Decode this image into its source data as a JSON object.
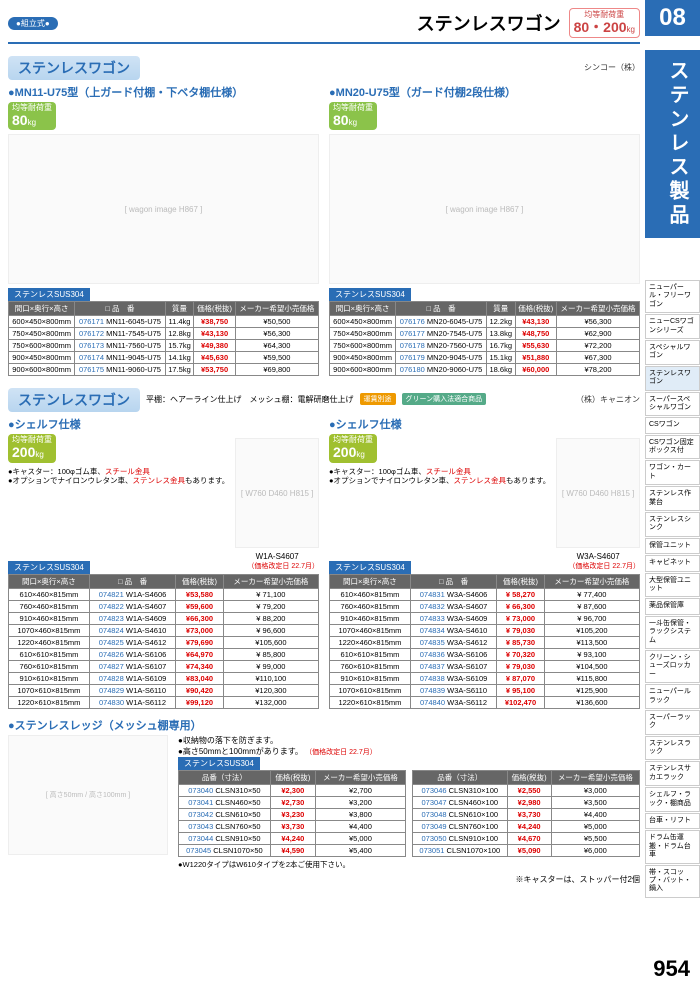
{
  "header": {
    "assembly": "●組立式●",
    "title": "ステンレスワゴン",
    "load_label": "均等耐荷重",
    "load_value": "80・200",
    "load_unit": "kg",
    "section_num": "08"
  },
  "side": {
    "category": "ステンレス製品",
    "items": [
      "ニューパール・フリーワゴン",
      "ニューCSワゴンシリーズ",
      "スペシャルワゴン",
      "ステンレスワゴン",
      "スーパースペシャルワゴン",
      "CSワゴン",
      "CSワゴン固定ボックス付",
      "ワゴン・カート",
      "ステンレス作業台",
      "ステンレスシンク",
      "保管ユニット",
      "キャビネット",
      "大型保管ユニット",
      "薬品保管庫",
      "一斗缶保管・ラックシステム",
      "クリーン・シューズロッカー",
      "ニューパールラック",
      "スーパーラック",
      "ステンレスラック",
      "ステンレスサカエラック",
      "シェルフ・ラック・棚商品",
      "台車・リフト",
      "ドラム缶運搬・ドラム台車",
      "帯・スコップ・バット・鍋入"
    ]
  },
  "sec1": {
    "header": "ステンレスワゴン",
    "maker": "シンコー（株）",
    "left": {
      "title": "MN11-U75型（上ガード付棚・下ベタ棚仕様）",
      "load_label": "均等耐荷重",
      "load_value": "80",
      "load_unit": "kg",
      "sus": "ステンレスSUS304",
      "cols": [
        "間口×奥行×高さ",
        "□ 品　番",
        "質量",
        "価格(税抜)",
        "メーカー希望小売価格"
      ],
      "rows": [
        [
          "600×450×800mm",
          "076171",
          "MN11-6045-U75",
          "11.4kg",
          "¥38,750",
          "¥50,500"
        ],
        [
          "750×450×800mm",
          "076172",
          "MN11-7545-U75",
          "12.8kg",
          "¥43,130",
          "¥56,300"
        ],
        [
          "750×600×800mm",
          "076173",
          "MN11-7560-U75",
          "15.7kg",
          "¥49,380",
          "¥64,300"
        ],
        [
          "900×450×800mm",
          "076174",
          "MN11-9045-U75",
          "14.1kg",
          "¥45,630",
          "¥59,500"
        ],
        [
          "900×600×800mm",
          "076175",
          "MN11-9060-U75",
          "17.5kg",
          "¥53,750",
          "¥69,800"
        ]
      ]
    },
    "right": {
      "title": "MN20-U75型（ガード付棚2段仕様）",
      "load_label": "均等耐荷重",
      "load_value": "80",
      "load_unit": "kg",
      "sus": "ステンレスSUS304",
      "cols": [
        "間口×奥行×高さ",
        "□ 品　番",
        "質量",
        "価格(税抜)",
        "メーカー希望小売価格"
      ],
      "rows": [
        [
          "600×450×800mm",
          "076176",
          "MN20-6045-U75",
          "12.2kg",
          "¥43,130",
          "¥56,300"
        ],
        [
          "750×450×800mm",
          "076177",
          "MN20-7545-U75",
          "13.8kg",
          "¥48,750",
          "¥62,900"
        ],
        [
          "750×600×800mm",
          "076178",
          "MN20-7560-U75",
          "16.7kg",
          "¥55,630",
          "¥72,200"
        ],
        [
          "900×450×800mm",
          "076179",
          "MN20-9045-U75",
          "15.1kg",
          "¥51,880",
          "¥67,300"
        ],
        [
          "900×600×800mm",
          "076180",
          "MN20-9060-U75",
          "18.6kg",
          "¥60,000",
          "¥78,200"
        ]
      ]
    }
  },
  "sec2": {
    "header": "ステンレスワゴン",
    "sub": "平棚：ヘアーライン仕上げ　メッシュ棚：電解研磨仕上げ",
    "badge1": "運賃別途",
    "badge2": "グリーン購入法適合商品",
    "maker": "（株）キャニオン",
    "left": {
      "title": "シェルフ仕様",
      "load_label": "均等耐荷重",
      "load_value": "200",
      "load_unit": "kg",
      "model": "W1A-S4607",
      "notes": "●キャスター：100φゴム車、スチール金具\n●オプションでナイロンウレタン車、ステンレス金具もあります。",
      "sus": "ステンレスSUS304",
      "price_rev": "（価格改定日 22.7月）",
      "cols": [
        "間口×奥行×高さ",
        "□ 品　番",
        "価格(税抜)",
        "メーカー希望小売価格"
      ],
      "rows": [
        [
          "610×460×815mm",
          "074821",
          "W1A-S4606",
          "¥53,580",
          "¥ 71,100"
        ],
        [
          "760×460×815mm",
          "074822",
          "W1A-S4607",
          "¥59,600",
          "¥ 79,200"
        ],
        [
          "910×460×815mm",
          "074823",
          "W1A-S4609",
          "¥66,300",
          "¥ 88,200"
        ],
        [
          "1070×460×815mm",
          "074824",
          "W1A-S4610",
          "¥73,000",
          "¥ 96,600"
        ],
        [
          "1220×460×815mm",
          "074825",
          "W1A-S4612",
          "¥79,690",
          "¥105,600"
        ],
        [
          "610×610×815mm",
          "074826",
          "W1A-S6106",
          "¥64,970",
          "¥ 85,800"
        ],
        [
          "760×610×815mm",
          "074827",
          "W1A-S6107",
          "¥74,340",
          "¥ 99,000"
        ],
        [
          "910×610×815mm",
          "074828",
          "W1A-S6109",
          "¥83,040",
          "¥110,100"
        ],
        [
          "1070×610×815mm",
          "074829",
          "W1A-S6110",
          "¥90,420",
          "¥120,300"
        ],
        [
          "1220×610×815mm",
          "074830",
          "W1A-S6112",
          "¥99,120",
          "¥132,000"
        ]
      ]
    },
    "right": {
      "title": "シェルフ仕様",
      "load_label": "均等耐荷重",
      "load_value": "200",
      "load_unit": "kg",
      "model": "W3A-S4607",
      "notes": "●キャスター：100φゴム車、スチール金具\n●オプションでナイロンウレタン車、ステンレス金具もあります。",
      "sus": "ステンレスSUS304",
      "price_rev": "（価格改定日 22.7月）",
      "cols": [
        "間口×奥行×高さ",
        "□ 品　番",
        "価格(税抜)",
        "メーカー希望小売価格"
      ],
      "rows": [
        [
          "610×460×815mm",
          "074831",
          "W3A-S4606",
          "¥ 58,270",
          "¥ 77,400"
        ],
        [
          "760×460×815mm",
          "074832",
          "W3A-S4607",
          "¥ 66,300",
          "¥ 87,600"
        ],
        [
          "910×460×815mm",
          "074833",
          "W3A-S4609",
          "¥ 73,000",
          "¥ 96,700"
        ],
        [
          "1070×460×815mm",
          "074834",
          "W3A-S4610",
          "¥ 79,030",
          "¥105,200"
        ],
        [
          "1220×460×815mm",
          "074835",
          "W3A-S4612",
          "¥ 85,730",
          "¥113,500"
        ],
        [
          "610×610×815mm",
          "074836",
          "W3A-S6106",
          "¥ 70,320",
          "¥ 93,100"
        ],
        [
          "760×610×815mm",
          "074837",
          "W3A-S6107",
          "¥ 79,030",
          "¥104,500"
        ],
        [
          "910×610×815mm",
          "074838",
          "W3A-S6109",
          "¥ 87,070",
          "¥115,800"
        ],
        [
          "1070×610×815mm",
          "074839",
          "W3A-S6110",
          "¥ 95,100",
          "¥125,900"
        ],
        [
          "1220×610×815mm",
          "074840",
          "W3A-S6112",
          "¥102,470",
          "¥136,600"
        ]
      ]
    }
  },
  "sec3": {
    "title": "ステンレスレッジ（メッシュ棚専用）",
    "note1": "●収納物の落下を防ぎます。",
    "note2": "●高さ50mmと100mmがあります。",
    "price_rev": "（価格改定日 22.7月）",
    "sus": "ステンレスSUS304",
    "cols": [
      "品番（寸法）",
      "価格(税抜)",
      "メーカー希望小売価格"
    ],
    "left_rows": [
      [
        "073040",
        "CLSN310×50",
        "¥2,300",
        "¥2,700"
      ],
      [
        "073041",
        "CLSN460×50",
        "¥2,730",
        "¥3,200"
      ],
      [
        "073042",
        "CLSN610×50",
        "¥3,230",
        "¥3,800"
      ],
      [
        "073043",
        "CLSN760×50",
        "¥3,730",
        "¥4,400"
      ],
      [
        "073044",
        "CLSN910×50",
        "¥4,240",
        "¥5,000"
      ],
      [
        "073045",
        "CLSN1070×50",
        "¥4,590",
        "¥5,400"
      ]
    ],
    "right_rows": [
      [
        "073046",
        "CLSN310×100",
        "¥2,550",
        "¥3,000"
      ],
      [
        "073047",
        "CLSN460×100",
        "¥2,980",
        "¥3,500"
      ],
      [
        "073048",
        "CLSN610×100",
        "¥3,730",
        "¥4,400"
      ],
      [
        "073049",
        "CLSN760×100",
        "¥4,240",
        "¥5,000"
      ],
      [
        "073050",
        "CLSN910×100",
        "¥4,670",
        "¥5,500"
      ],
      [
        "073051",
        "CLSN1070×100",
        "¥5,090",
        "¥6,000"
      ]
    ],
    "foot_note": "●W1220タイプはW610タイプを2本ご使用下さい。"
  },
  "footer": {
    "caster_note": "※キャスターは、ストッパー付2個",
    "page_num": "954"
  }
}
